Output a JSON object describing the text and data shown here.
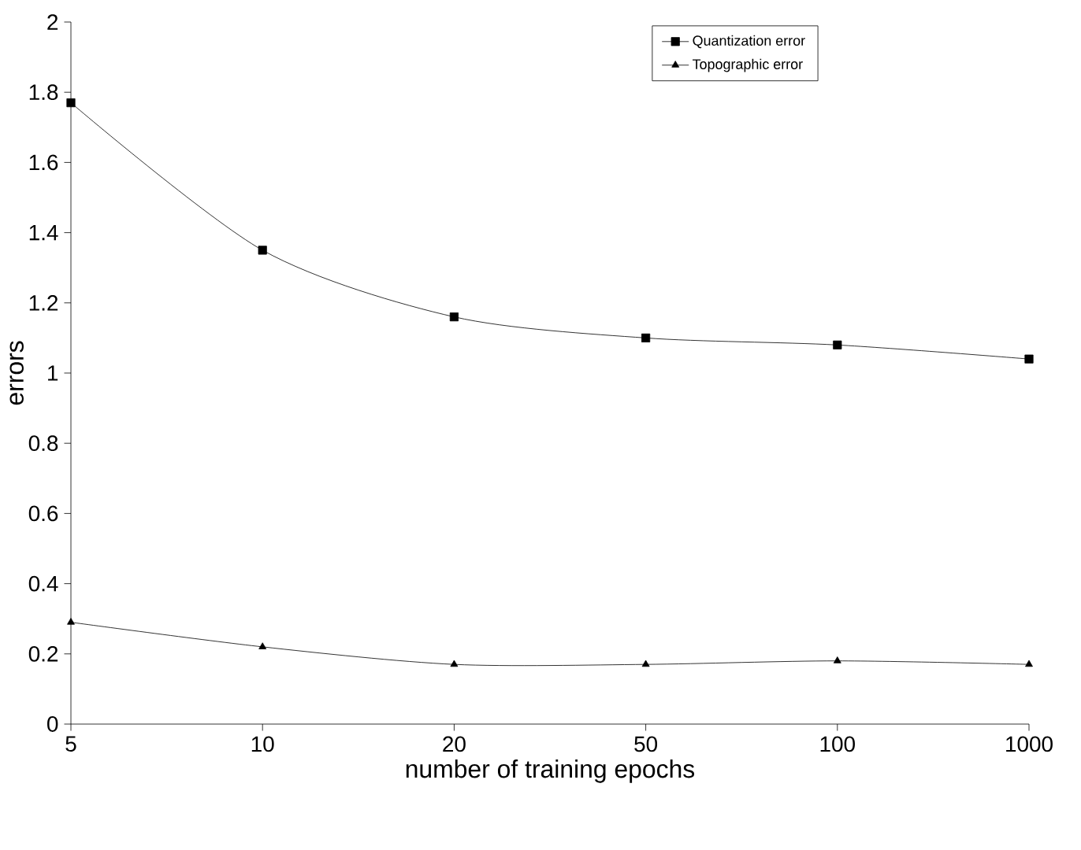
{
  "chart_data": {
    "type": "line",
    "xlabel": "number of training epochs",
    "ylabel": "errors",
    "categories": [
      "5",
      "10",
      "20",
      "50",
      "100",
      "1000"
    ],
    "series": [
      {
        "name": "Quantization error",
        "color": "#000000",
        "marker": "square",
        "values": [
          1.77,
          1.35,
          1.16,
          1.1,
          1.08,
          1.04
        ]
      },
      {
        "name": "Topographic error",
        "color": "#000000",
        "marker": "triangle",
        "values": [
          0.29,
          0.22,
          0.17,
          0.17,
          0.18,
          0.17
        ]
      }
    ],
    "ylim": [
      0,
      2
    ],
    "yticks": [
      0,
      0.2,
      0.4,
      0.6,
      0.8,
      1,
      1.2,
      1.4,
      1.6,
      1.8,
      2
    ],
    "legend": "top right",
    "grid": false,
    "line_style": "solid"
  }
}
